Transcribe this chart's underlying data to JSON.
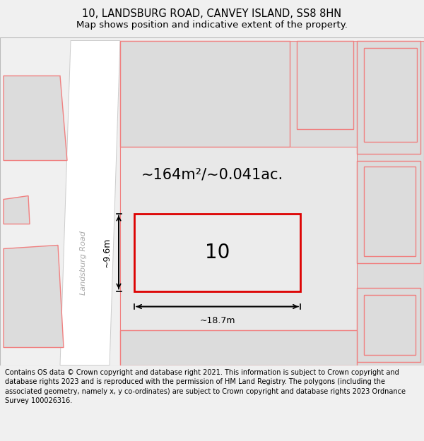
{
  "title_line1": "10, LANDSBURG ROAD, CANVEY ISLAND, SS8 8HN",
  "title_line2": "Map shows position and indicative extent of the property.",
  "footer_text": "Contains OS data © Crown copyright and database right 2021. This information is subject to Crown copyright and database rights 2023 and is reproduced with the permission of HM Land Registry. The polygons (including the associated geometry, namely x, y co-ordinates) are subject to Crown copyright and database rights 2023 Ordnance Survey 100026316.",
  "area_label": "~164m²/~0.041ac.",
  "number_label": "10",
  "dim_width_label": "~18.7m",
  "dim_height_label": "~9.6m",
  "road_label": "Landsburg Road",
  "bg_color": "#f0f0f0",
  "map_bg_color": "#ffffff",
  "neighbor_fill": "#dcdcdc",
  "neighbor_edge_color": "#f08080",
  "road_fill": "#ffffff",
  "property_fill": "#e8e8e8",
  "property_edge_color": "#dd0000",
  "title_fontsize": 10.5,
  "subtitle_fontsize": 9.5,
  "footer_fontsize": 7.0,
  "area_fontsize": 15,
  "number_fontsize": 20,
  "dim_fontsize": 9
}
